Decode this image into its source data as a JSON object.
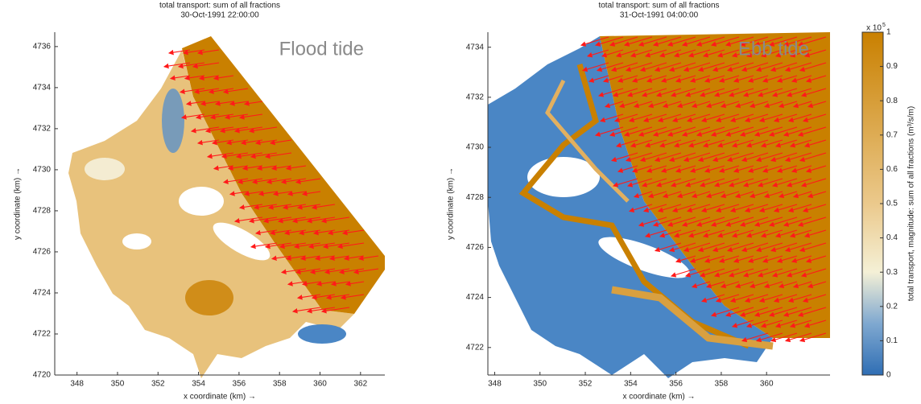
{
  "chart_data": [
    {
      "type": "map",
      "title": "total transport: sum of all fractions",
      "subtitle": "30-Oct-1991 22:00:00",
      "annotation": "Flood tide",
      "xlabel": "x coordinate (km) →",
      "ylabel": "y coordinate (km) →",
      "xlim": [
        346.9,
        363.2
      ],
      "xticks": [
        348,
        350,
        352,
        354,
        356,
        358,
        360,
        362
      ],
      "ylim": [
        4720,
        4736.7
      ],
      "yticks": [
        4720,
        4722,
        4724,
        4726,
        4728,
        4730,
        4732,
        4734,
        4736
      ]
    },
    {
      "type": "map",
      "title": "total transport: sum of all fractions",
      "subtitle": "31-Oct-1991 04:00:00",
      "annotation": "Ebb tide",
      "xlabel": "x coordinate (km) →",
      "ylabel": "y coordinate (km) →",
      "xlim": [
        347.7,
        362.8
      ],
      "xticks": [
        348,
        350,
        352,
        354,
        356,
        358,
        360
      ],
      "ylim": [
        4720.9,
        4734.6
      ],
      "yticks": [
        4722,
        4724,
        4726,
        4728,
        4730,
        4732,
        4734
      ],
      "colorbar": {
        "label": "total transport, magnitude: sum of all fractions (m³/s/m)",
        "multiplier": "x 10",
        "multiplier_exponent": "5",
        "lim": [
          0,
          1
        ],
        "ticks": [
          0,
          0.1,
          0.2,
          0.3,
          0.4,
          0.5,
          0.6,
          0.7,
          0.8,
          0.9,
          1
        ]
      }
    }
  ]
}
